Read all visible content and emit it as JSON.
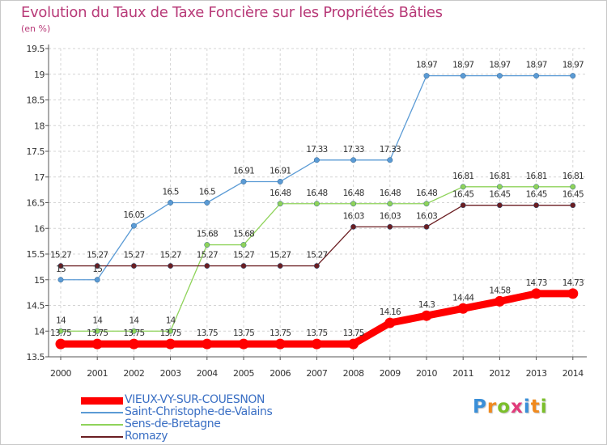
{
  "title": "Evolution du Taux de Taxe Foncière sur les Propriétés Bâties",
  "unit_label": "(en %)",
  "logo": {
    "text": "Proxiti",
    "letter_colors": [
      "#3a8fd8",
      "#f08a1e",
      "#7bbf2a",
      "#e23b7b",
      "#3a8fd8",
      "#f08a1e",
      "#7bbf2a"
    ]
  },
  "chart_data": {
    "type": "line",
    "title": "Evolution du Taux de Taxe Foncière sur les Propriétés Bâties",
    "ylabel": "(en %)",
    "xlabel": "",
    "x": [
      "2000",
      "2001",
      "2002",
      "2003",
      "2004",
      "2005",
      "2006",
      "2007",
      "2008",
      "2009",
      "2010",
      "2011",
      "2012",
      "2013",
      "2014"
    ],
    "ylim": [
      13.5,
      19.5
    ],
    "yticks": [
      "13.5",
      "14",
      "14.5",
      "15",
      "15.5",
      "16",
      "16.5",
      "17",
      "17.5",
      "18",
      "18.5",
      "19",
      "19.5"
    ],
    "grid": true,
    "legend_position": "bottom-left",
    "series": [
      {
        "name": "VIEUX-VY-SUR-COUESNON",
        "color": "#ff0000",
        "values": [
          13.75,
          13.75,
          13.75,
          13.75,
          13.75,
          13.75,
          13.75,
          13.75,
          13.75,
          14.16,
          14.3,
          14.44,
          14.58,
          14.73,
          14.73
        ],
        "labels": [
          "13.75",
          "13.75",
          "13.75",
          "13.75",
          "13.75",
          "13.75",
          "13.75",
          "13.75",
          "13.75",
          "14.16",
          "14.3",
          "14.44",
          "14.58",
          "14.73",
          "14.73"
        ]
      },
      {
        "name": "Saint-Christophe-de-Valains",
        "color": "#5b9bd5",
        "values": [
          15,
          15,
          16.05,
          16.5,
          16.5,
          16.91,
          16.91,
          17.33,
          17.33,
          17.33,
          18.97,
          18.97,
          18.97,
          18.97,
          18.97
        ],
        "labels": [
          "15",
          "15",
          "16.05",
          "16.5",
          "16.5",
          "16.91",
          "16.91",
          "17.33",
          "17.33",
          "17.33",
          "18.97",
          "18.97",
          "18.97",
          "18.97",
          "18.97"
        ]
      },
      {
        "name": "Sens-de-Bretagne",
        "color": "#8fd35a",
        "values": [
          14,
          14,
          14,
          14,
          15.68,
          15.68,
          16.48,
          16.48,
          16.48,
          16.48,
          16.48,
          16.81,
          16.81,
          16.81,
          16.81
        ],
        "labels": [
          "14",
          "14",
          "14",
          "14",
          "15.68",
          "15.68",
          "16.48",
          "16.48",
          "16.48",
          "16.48",
          "16.48",
          "16.81",
          "16.81",
          "16.81",
          "16.81"
        ]
      },
      {
        "name": "Romazy",
        "color": "#6b1e22",
        "values": [
          15.27,
          15.27,
          15.27,
          15.27,
          15.27,
          15.27,
          15.27,
          15.27,
          16.03,
          16.03,
          16.03,
          16.45,
          16.45,
          16.45,
          16.45
        ],
        "labels": [
          "15.27",
          "15.27",
          "15.27",
          "15.27",
          "15.27",
          "15.27",
          "15.27",
          "15.27",
          "16.03",
          "16.03",
          "16.03",
          "16.45",
          "16.45",
          "16.45",
          "16.45"
        ]
      }
    ]
  }
}
